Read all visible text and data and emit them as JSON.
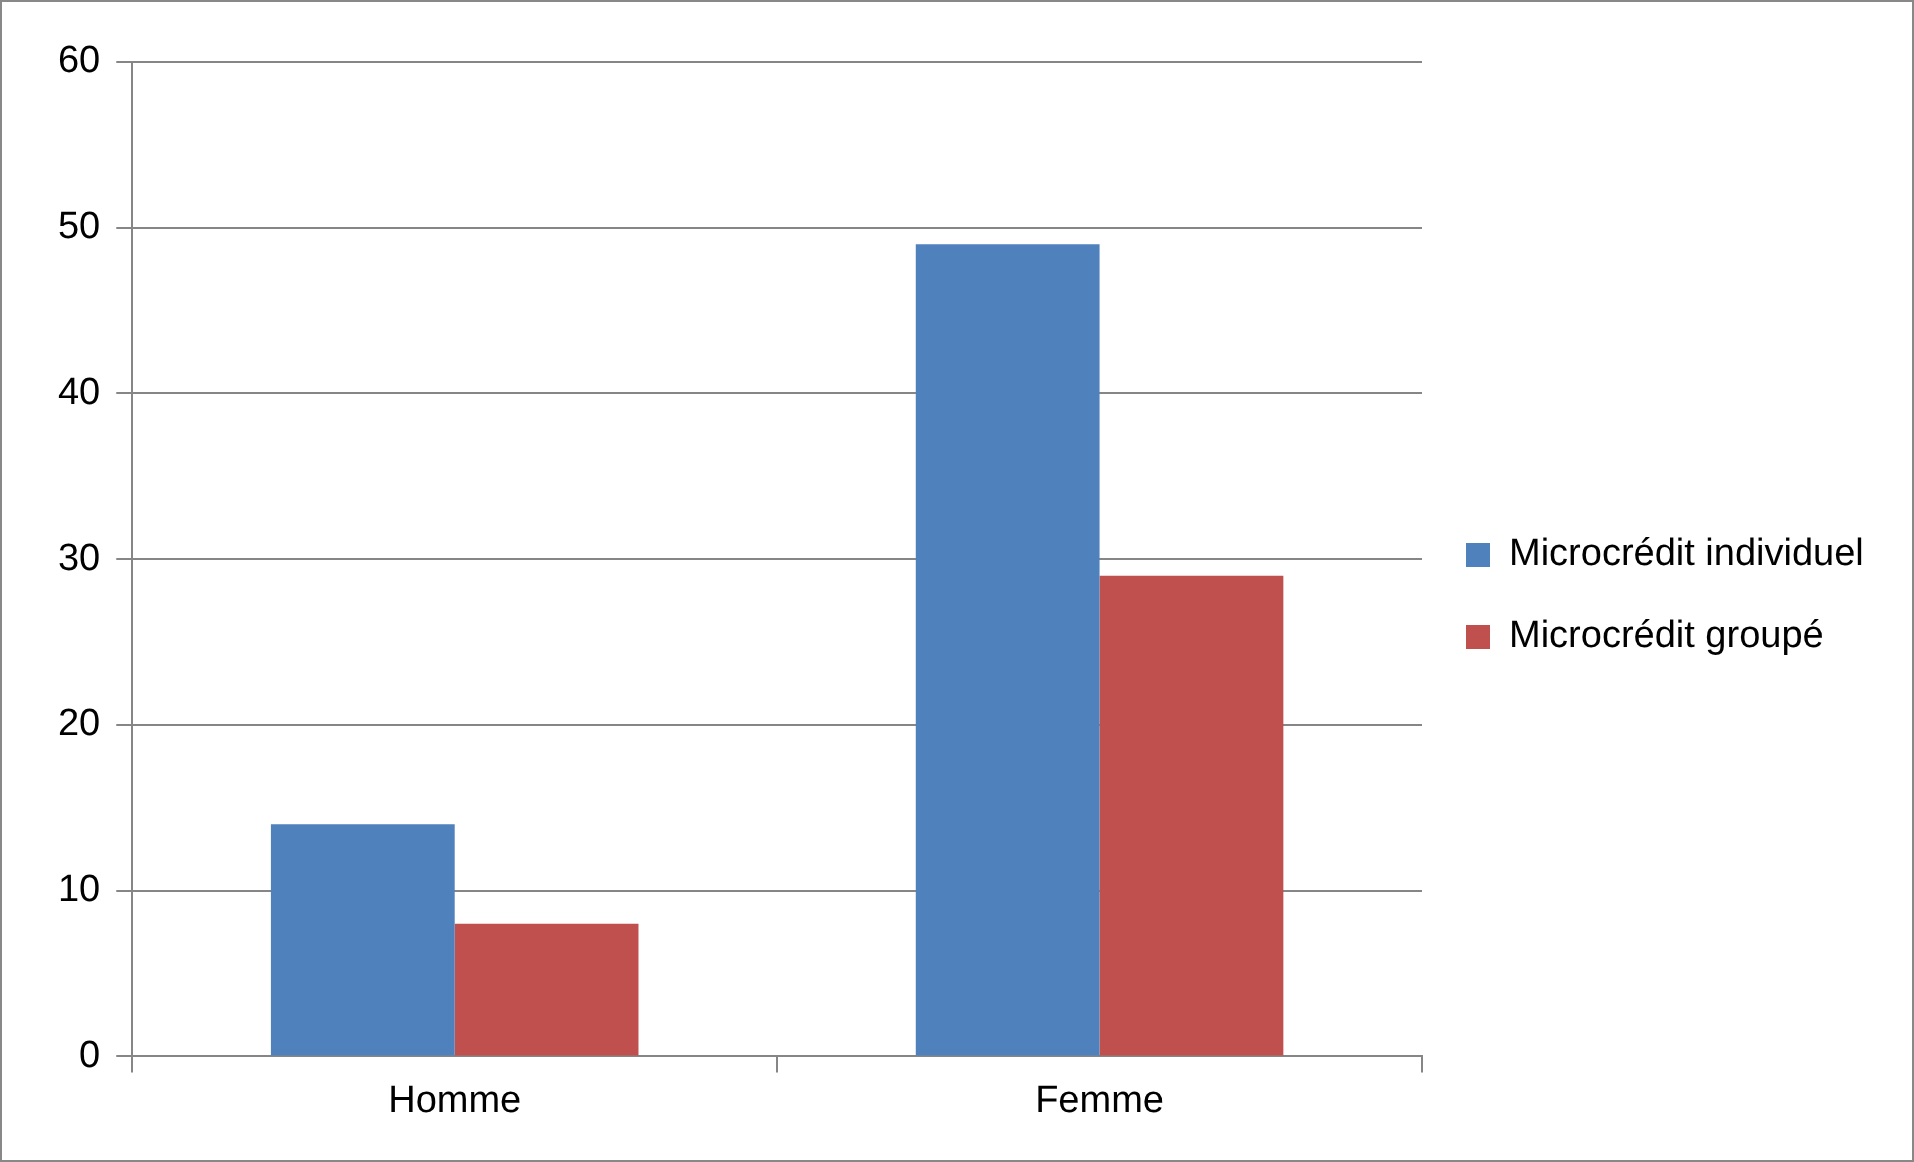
{
  "chart_data": {
    "type": "bar",
    "categories": [
      "Homme",
      "Femme"
    ],
    "series": [
      {
        "name": "Microcrédit individuel",
        "color": "#4f81bd",
        "values": [
          14,
          49
        ]
      },
      {
        "name": "Microcrédit groupé",
        "color": "#c0504d",
        "values": [
          8,
          29
        ]
      }
    ],
    "ylim": [
      0,
      60
    ],
    "yticks": [
      0,
      10,
      20,
      30,
      40,
      50,
      60
    ],
    "grid": "y",
    "legend": "right"
  }
}
